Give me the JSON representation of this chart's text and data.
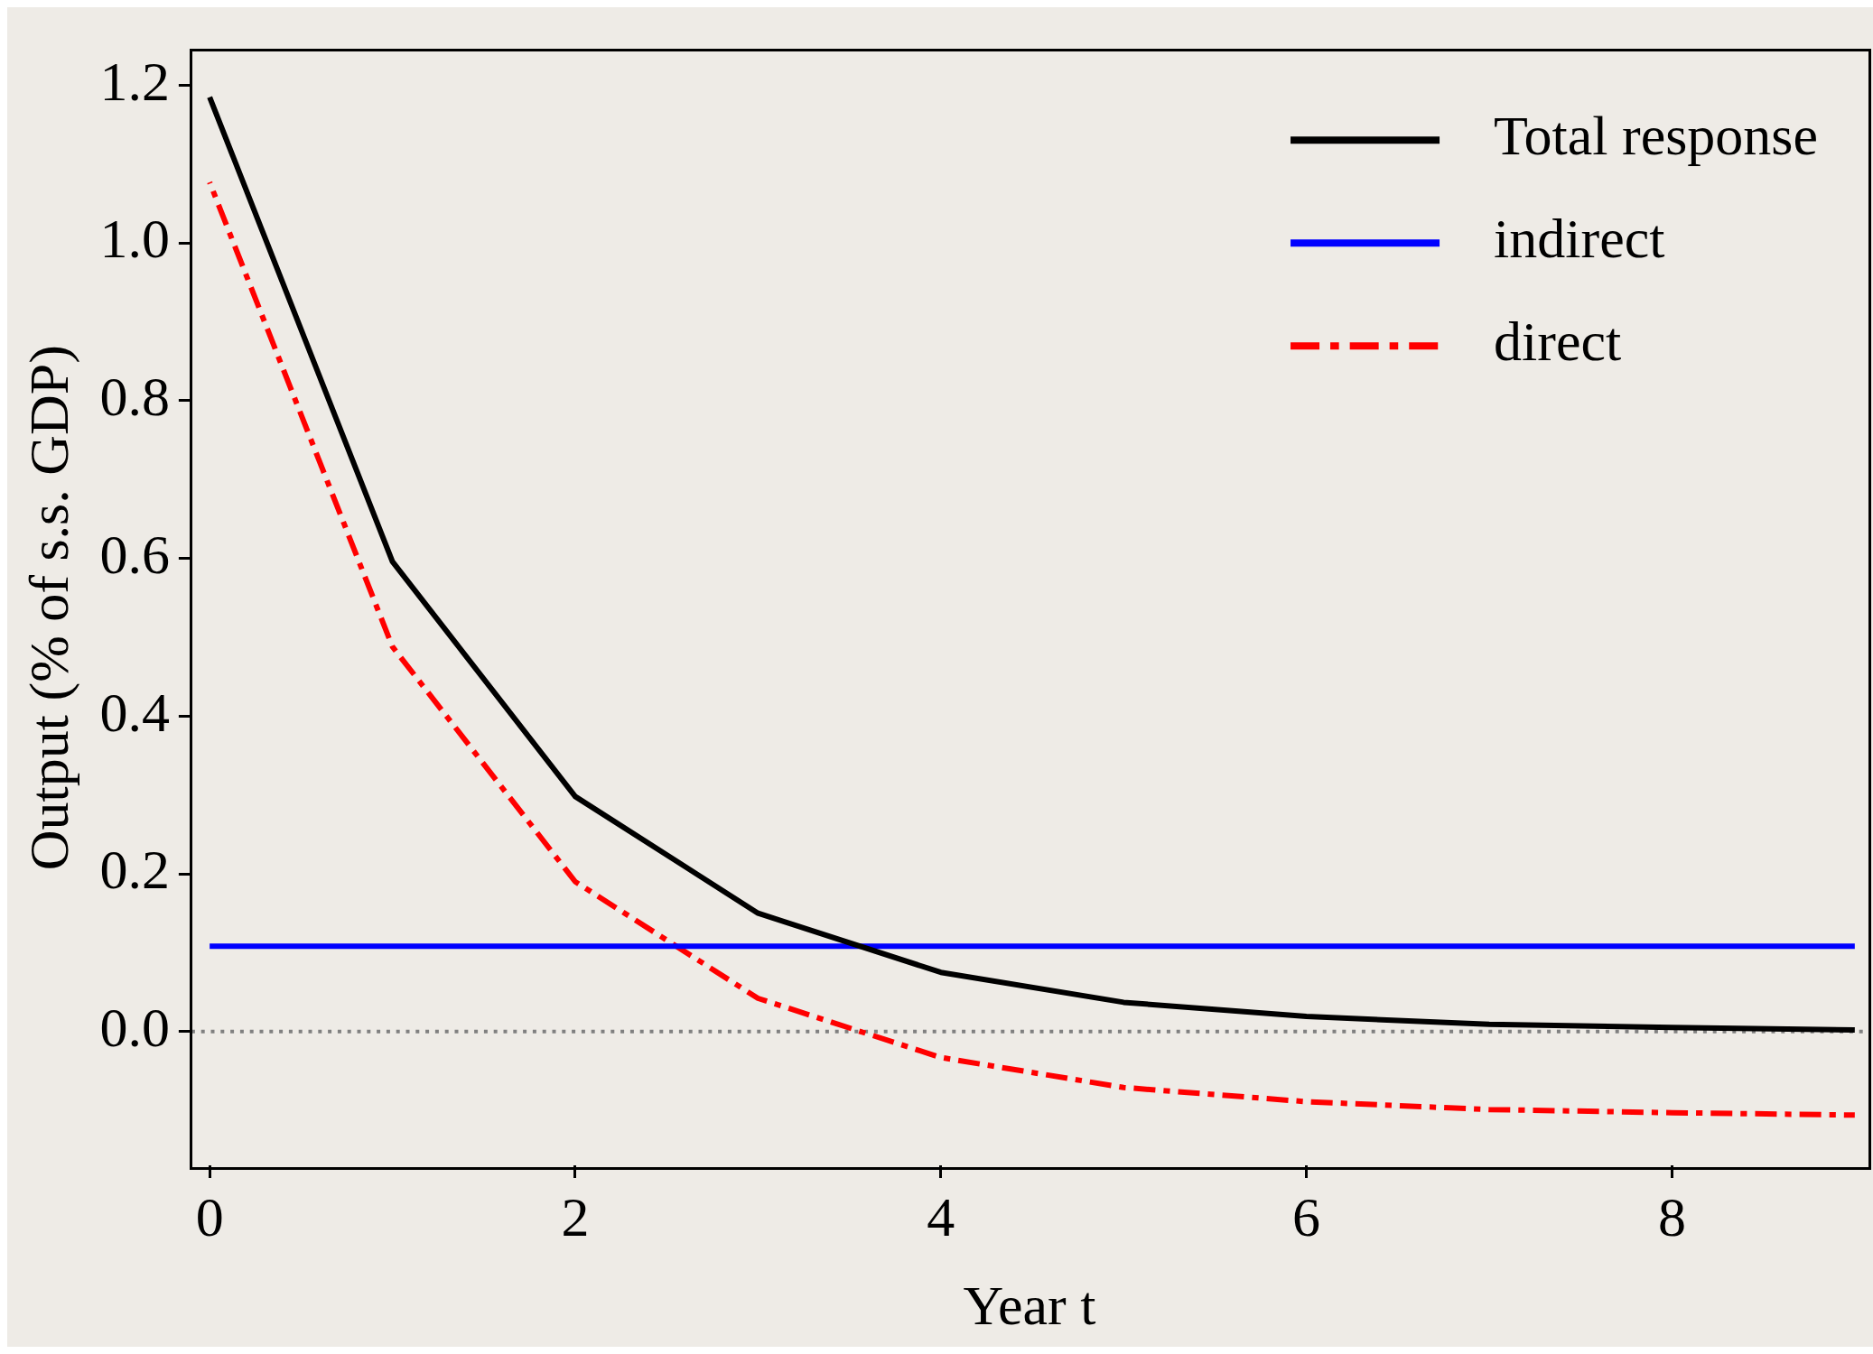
{
  "chart_data": {
    "type": "line",
    "xlabel": "Year t",
    "ylabel": "Output (% of s.s. GDP)",
    "x": [
      0,
      1,
      2,
      3,
      4,
      5,
      6,
      7,
      8,
      9
    ],
    "series": [
      {
        "name": "Total response",
        "color": "#000000",
        "line_style": "solid",
        "values": [
          1.185,
          0.596,
          0.298,
          0.15,
          0.075,
          0.037,
          0.019,
          0.009,
          0.005,
          0.002
        ]
      },
      {
        "name": "indirect",
        "color": "#0000ff",
        "line_style": "solid",
        "values": [
          0.108,
          0.108,
          0.108,
          0.108,
          0.108,
          0.108,
          0.108,
          0.108,
          0.108,
          0.108
        ]
      },
      {
        "name": "direct",
        "color": "#ff0000",
        "line_style": "dashdot",
        "values": [
          1.077,
          0.488,
          0.19,
          0.042,
          -0.033,
          -0.071,
          -0.089,
          -0.099,
          -0.103,
          -0.106
        ]
      }
    ],
    "xlim": [
      -0.1,
      9.07
    ],
    "xticks": [
      0,
      2,
      4,
      6,
      8
    ],
    "ylim": [
      -0.17,
      1.245
    ],
    "yticks": [
      {
        "value": 0,
        "label": "0.0"
      },
      0.2,
      0.4,
      0.6,
      0.8,
      {
        "value": 1,
        "label": "1.0"
      },
      1.2
    ],
    "ref_lines": [
      {
        "axis": "y",
        "value": 0,
        "color": "#808080",
        "line_style": "dotted"
      }
    ],
    "grid": false,
    "legend": "top right",
    "marker": "none"
  }
}
